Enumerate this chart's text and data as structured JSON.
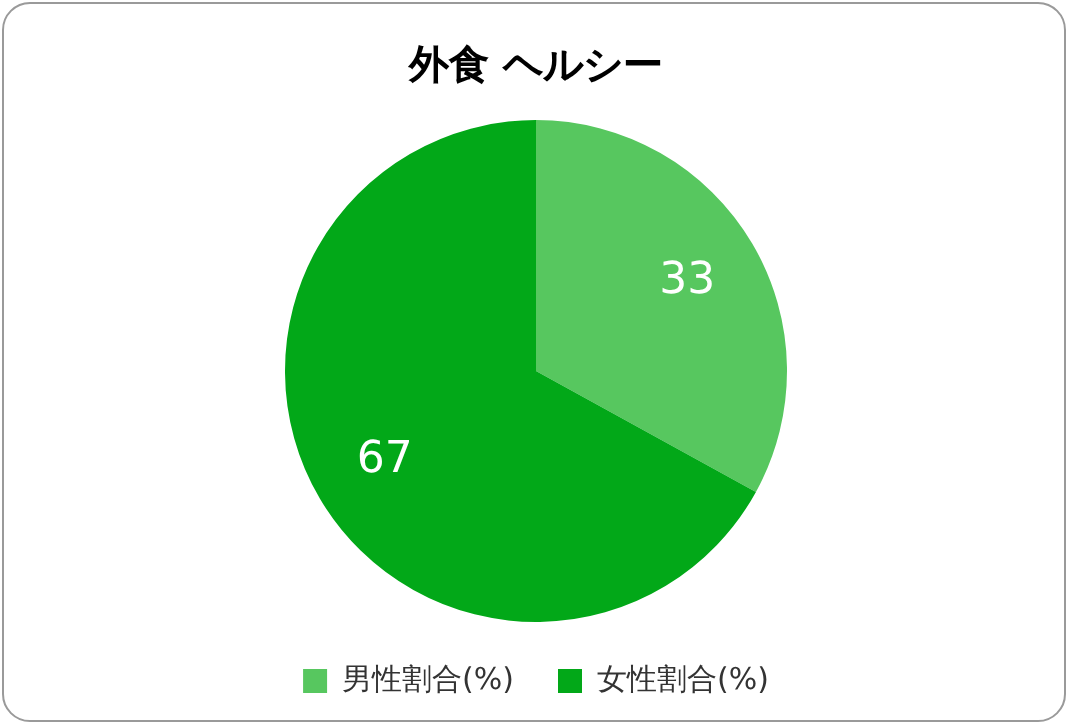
{
  "chart_data": {
    "type": "pie",
    "title": "外食 ヘルシー",
    "categories": [
      "男性割合(%)",
      "女性割合(%)"
    ],
    "values": [
      33,
      67
    ],
    "colors": [
      "#57c75f",
      "#02a818"
    ],
    "data_labels": true,
    "legend": "bottom"
  }
}
